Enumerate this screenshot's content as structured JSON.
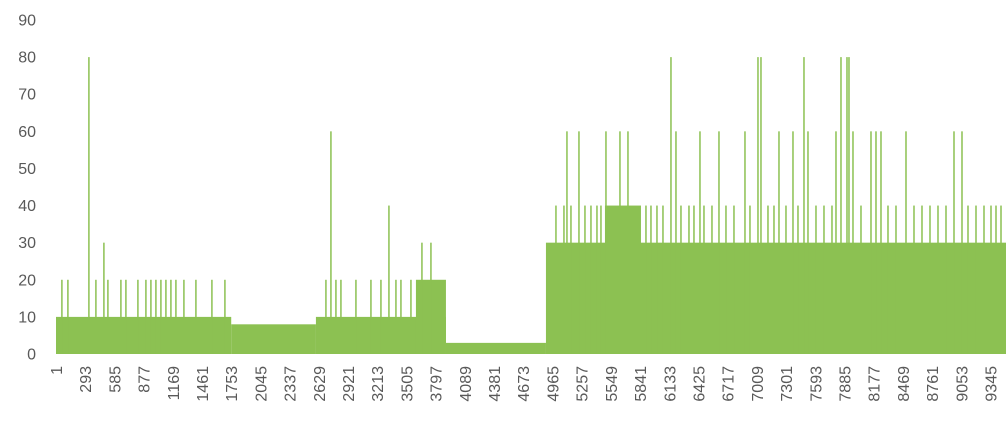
{
  "chart_data": {
    "type": "bar",
    "title": "",
    "xlabel": "",
    "ylabel": "",
    "ylim": [
      0,
      90
    ],
    "xlim": [
      1,
      9500
    ],
    "grid": false,
    "legend": "none",
    "y_ticks": [
      0,
      10,
      20,
      30,
      40,
      50,
      60,
      70,
      80,
      90
    ],
    "x_ticks": [
      1,
      293,
      585,
      877,
      1169,
      1461,
      1753,
      2045,
      2337,
      2629,
      2921,
      3213,
      3505,
      3797,
      4089,
      4381,
      4673,
      4965,
      5257,
      5549,
      5841,
      6133,
      6425,
      6717,
      7009,
      7301,
      7593,
      7885,
      8177,
      8469,
      8761,
      9053,
      9345
    ],
    "series_color": "#8cc152",
    "segments": [
      {
        "x_start": 1,
        "x_end": 1753,
        "base_value": 10
      },
      {
        "x_start": 1753,
        "x_end": 2600,
        "base_value": 8
      },
      {
        "x_start": 2600,
        "x_end": 3900,
        "base_value": 10
      },
      {
        "x_start": 3900,
        "x_end": 4900,
        "base_value": 3
      },
      {
        "x_start": 4900,
        "x_end": 9500,
        "base_value": 30
      }
    ],
    "plateaus": [
      {
        "x_start": 3600,
        "x_end": 3900,
        "value": 20
      },
      {
        "x_start": 5490,
        "x_end": 5850,
        "value": 40
      }
    ],
    "spikes": [
      {
        "x": 60,
        "value": 20
      },
      {
        "x": 120,
        "value": 20
      },
      {
        "x": 330,
        "value": 80
      },
      {
        "x": 400,
        "value": 20
      },
      {
        "x": 480,
        "value": 30
      },
      {
        "x": 520,
        "value": 20
      },
      {
        "x": 650,
        "value": 20
      },
      {
        "x": 700,
        "value": 20
      },
      {
        "x": 820,
        "value": 20
      },
      {
        "x": 900,
        "value": 20
      },
      {
        "x": 950,
        "value": 20
      },
      {
        "x": 1000,
        "value": 20
      },
      {
        "x": 1050,
        "value": 20
      },
      {
        "x": 1100,
        "value": 20
      },
      {
        "x": 1150,
        "value": 20
      },
      {
        "x": 1200,
        "value": 20
      },
      {
        "x": 1280,
        "value": 20
      },
      {
        "x": 1400,
        "value": 20
      },
      {
        "x": 1560,
        "value": 20
      },
      {
        "x": 1690,
        "value": 20
      },
      {
        "x": 2700,
        "value": 20
      },
      {
        "x": 2750,
        "value": 60
      },
      {
        "x": 2800,
        "value": 20
      },
      {
        "x": 2850,
        "value": 20
      },
      {
        "x": 3000,
        "value": 20
      },
      {
        "x": 3150,
        "value": 20
      },
      {
        "x": 3250,
        "value": 20
      },
      {
        "x": 3330,
        "value": 40
      },
      {
        "x": 3400,
        "value": 20
      },
      {
        "x": 3450,
        "value": 20
      },
      {
        "x": 3550,
        "value": 20
      },
      {
        "x": 3660,
        "value": 30
      },
      {
        "x": 3750,
        "value": 30
      },
      {
        "x": 5000,
        "value": 40
      },
      {
        "x": 5080,
        "value": 40
      },
      {
        "x": 5110,
        "value": 60
      },
      {
        "x": 5150,
        "value": 40
      },
      {
        "x": 5230,
        "value": 60
      },
      {
        "x": 5290,
        "value": 40
      },
      {
        "x": 5350,
        "value": 40
      },
      {
        "x": 5410,
        "value": 40
      },
      {
        "x": 5450,
        "value": 40
      },
      {
        "x": 5500,
        "value": 60
      },
      {
        "x": 5640,
        "value": 60
      },
      {
        "x": 5720,
        "value": 60
      },
      {
        "x": 5900,
        "value": 40
      },
      {
        "x": 5950,
        "value": 40
      },
      {
        "x": 6010,
        "value": 40
      },
      {
        "x": 6070,
        "value": 40
      },
      {
        "x": 6150,
        "value": 80
      },
      {
        "x": 6200,
        "value": 60
      },
      {
        "x": 6250,
        "value": 40
      },
      {
        "x": 6330,
        "value": 40
      },
      {
        "x": 6380,
        "value": 40
      },
      {
        "x": 6440,
        "value": 60
      },
      {
        "x": 6480,
        "value": 40
      },
      {
        "x": 6560,
        "value": 40
      },
      {
        "x": 6630,
        "value": 60
      },
      {
        "x": 6700,
        "value": 40
      },
      {
        "x": 6780,
        "value": 40
      },
      {
        "x": 6890,
        "value": 60
      },
      {
        "x": 6940,
        "value": 40
      },
      {
        "x": 7020,
        "value": 80
      },
      {
        "x": 7050,
        "value": 80
      },
      {
        "x": 7120,
        "value": 40
      },
      {
        "x": 7180,
        "value": 40
      },
      {
        "x": 7230,
        "value": 60
      },
      {
        "x": 7300,
        "value": 40
      },
      {
        "x": 7370,
        "value": 60
      },
      {
        "x": 7420,
        "value": 40
      },
      {
        "x": 7480,
        "value": 80
      },
      {
        "x": 7520,
        "value": 60
      },
      {
        "x": 7600,
        "value": 40
      },
      {
        "x": 7680,
        "value": 40
      },
      {
        "x": 7760,
        "value": 40
      },
      {
        "x": 7800,
        "value": 60
      },
      {
        "x": 7850,
        "value": 80
      },
      {
        "x": 7910,
        "value": 80
      },
      {
        "x": 7930,
        "value": 80
      },
      {
        "x": 7970,
        "value": 60
      },
      {
        "x": 8050,
        "value": 40
      },
      {
        "x": 8150,
        "value": 60
      },
      {
        "x": 8200,
        "value": 60
      },
      {
        "x": 8250,
        "value": 60
      },
      {
        "x": 8320,
        "value": 40
      },
      {
        "x": 8400,
        "value": 40
      },
      {
        "x": 8500,
        "value": 60
      },
      {
        "x": 8580,
        "value": 40
      },
      {
        "x": 8660,
        "value": 40
      },
      {
        "x": 8740,
        "value": 40
      },
      {
        "x": 8820,
        "value": 40
      },
      {
        "x": 8900,
        "value": 40
      },
      {
        "x": 8980,
        "value": 60
      },
      {
        "x": 9060,
        "value": 60
      },
      {
        "x": 9120,
        "value": 40
      },
      {
        "x": 9200,
        "value": 40
      },
      {
        "x": 9280,
        "value": 40
      },
      {
        "x": 9350,
        "value": 40
      },
      {
        "x": 9400,
        "value": 40
      },
      {
        "x": 9450,
        "value": 40
      }
    ]
  }
}
